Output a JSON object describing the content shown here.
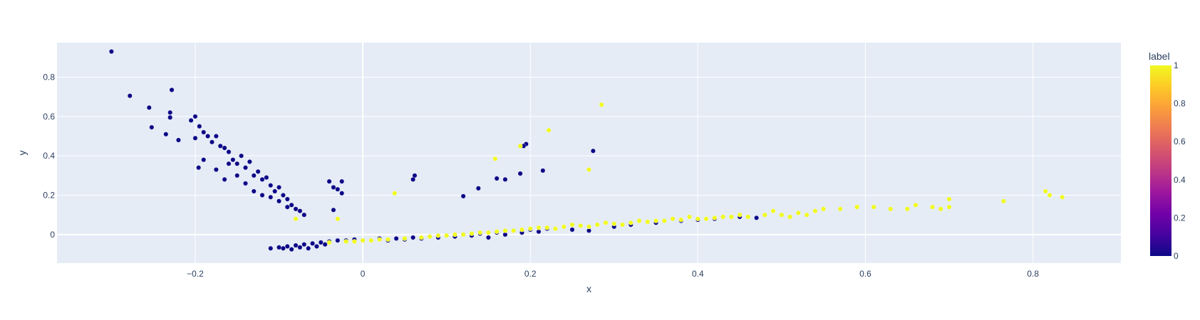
{
  "chart_data": {
    "type": "scatter",
    "title": "",
    "xlabel": "x",
    "ylabel": "y",
    "xlim": [
      -0.365,
      0.905
    ],
    "ylim": [
      -0.145,
      0.975
    ],
    "x_ticks": [
      -0.2,
      0,
      0.2,
      0.4,
      0.6,
      0.8
    ],
    "x_tick_labels": [
      "−0.2",
      "0",
      "0.2",
      "0.4",
      "0.6",
      "0.8"
    ],
    "y_ticks": [
      0,
      0.2,
      0.4,
      0.6,
      0.8
    ],
    "y_tick_labels": [
      "0",
      "0.2",
      "0.4",
      "0.6",
      "0.8"
    ],
    "grid": true,
    "plot_background": "#e5ecf6",
    "colorbar": {
      "title": "label",
      "range": [
        0,
        1
      ],
      "ticks": [
        0,
        0.2,
        0.4,
        0.6,
        0.8,
        1
      ],
      "tick_labels": [
        "0",
        "0.2",
        "0.4",
        "0.6",
        "0.8",
        "1"
      ],
      "colorscale": [
        "#0d0887",
        "#46039f",
        "#7201a8",
        "#9c179e",
        "#bd3786",
        "#d8576b",
        "#ed7953",
        "#fb9f3a",
        "#fdca26",
        "#f0f921"
      ],
      "placement": "right"
    },
    "series": [
      {
        "label_value": 0,
        "color": "#0d0887",
        "points": [
          [
            -0.3,
            0.93
          ],
          [
            -0.278,
            0.705
          ],
          [
            -0.255,
            0.645
          ],
          [
            -0.252,
            0.545
          ],
          [
            -0.235,
            0.51
          ],
          [
            -0.228,
            0.735
          ],
          [
            -0.23,
            0.62
          ],
          [
            -0.23,
            0.595
          ],
          [
            -0.22,
            0.48
          ],
          [
            -0.2,
            0.6
          ],
          [
            -0.205,
            0.58
          ],
          [
            -0.195,
            0.55
          ],
          [
            -0.2,
            0.49
          ],
          [
            -0.19,
            0.52
          ],
          [
            -0.185,
            0.5
          ],
          [
            -0.18,
            0.47
          ],
          [
            -0.175,
            0.5
          ],
          [
            -0.17,
            0.45
          ],
          [
            -0.165,
            0.44
          ],
          [
            -0.16,
            0.42
          ],
          [
            -0.155,
            0.38
          ],
          [
            -0.15,
            0.36
          ],
          [
            -0.145,
            0.4
          ],
          [
            -0.14,
            0.34
          ],
          [
            -0.135,
            0.37
          ],
          [
            -0.13,
            0.3
          ],
          [
            -0.125,
            0.32
          ],
          [
            -0.12,
            0.28
          ],
          [
            -0.115,
            0.29
          ],
          [
            -0.11,
            0.25
          ],
          [
            -0.105,
            0.22
          ],
          [
            -0.1,
            0.24
          ],
          [
            -0.095,
            0.2
          ],
          [
            -0.09,
            0.18
          ],
          [
            -0.085,
            0.15
          ],
          [
            -0.08,
            0.13
          ],
          [
            -0.075,
            0.12
          ],
          [
            -0.07,
            0.1
          ],
          [
            -0.196,
            0.34
          ],
          [
            -0.19,
            0.38
          ],
          [
            -0.175,
            0.33
          ],
          [
            -0.165,
            0.28
          ],
          [
            -0.16,
            0.36
          ],
          [
            -0.15,
            0.3
          ],
          [
            -0.14,
            0.26
          ],
          [
            -0.13,
            0.22
          ],
          [
            -0.12,
            0.2
          ],
          [
            -0.11,
            0.19
          ],
          [
            -0.1,
            0.17
          ],
          [
            -0.09,
            0.14
          ],
          [
            -0.04,
            0.27
          ],
          [
            -0.035,
            0.24
          ],
          [
            -0.03,
            0.23
          ],
          [
            -0.025,
            0.27
          ],
          [
            -0.035,
            0.125
          ],
          [
            -0.025,
            0.21
          ],
          [
            0.062,
            0.3
          ],
          [
            0.06,
            0.28
          ],
          [
            0.12,
            0.195
          ],
          [
            0.138,
            0.235
          ],
          [
            0.17,
            0.28
          ],
          [
            0.16,
            0.285
          ],
          [
            0.188,
            0.31
          ],
          [
            0.195,
            0.46
          ],
          [
            0.192,
            0.45
          ],
          [
            0.215,
            0.325
          ],
          [
            0.275,
            0.425
          ],
          [
            -0.11,
            -0.07
          ],
          [
            -0.1,
            -0.065
          ],
          [
            -0.09,
            -0.06
          ],
          [
            -0.08,
            -0.055
          ],
          [
            -0.07,
            -0.05
          ],
          [
            -0.06,
            -0.045
          ],
          [
            -0.05,
            -0.04
          ],
          [
            -0.04,
            -0.035
          ],
          [
            -0.03,
            -0.03
          ],
          [
            -0.02,
            -0.03
          ],
          [
            -0.01,
            -0.025
          ],
          [
            0.0,
            -0.03
          ],
          [
            0.02,
            -0.02
          ],
          [
            0.04,
            -0.02
          ],
          [
            0.06,
            -0.015
          ],
          [
            0.08,
            -0.01
          ],
          [
            0.1,
            -0.005
          ],
          [
            0.12,
            0.0
          ],
          [
            0.14,
            0.005
          ],
          [
            0.16,
            0.01
          ],
          [
            0.18,
            0.02
          ],
          [
            0.2,
            0.025
          ],
          [
            0.22,
            0.03
          ],
          [
            0.25,
            0.025
          ],
          [
            0.27,
            0.02
          ],
          [
            0.3,
            0.04
          ],
          [
            0.32,
            0.05
          ],
          [
            0.35,
            0.06
          ],
          [
            0.38,
            0.07
          ],
          [
            0.4,
            0.075
          ],
          [
            0.42,
            0.08
          ],
          [
            0.45,
            0.09
          ],
          [
            0.47,
            0.085
          ],
          [
            -0.095,
            -0.07
          ],
          [
            -0.085,
            -0.075
          ],
          [
            -0.075,
            -0.065
          ],
          [
            -0.065,
            -0.07
          ],
          [
            -0.055,
            -0.06
          ],
          [
            -0.045,
            -0.05
          ],
          [
            0.03,
            -0.03
          ],
          [
            0.05,
            -0.025
          ],
          [
            0.07,
            -0.02
          ],
          [
            0.09,
            -0.015
          ],
          [
            0.11,
            -0.01
          ],
          [
            0.13,
            -0.005
          ],
          [
            0.15,
            -0.015
          ],
          [
            0.17,
            0.0
          ],
          [
            0.19,
            0.01
          ],
          [
            0.21,
            0.015
          ]
        ]
      },
      {
        "label_value": 1,
        "color": "#f0f921",
        "points": [
          [
            -0.08,
            0.08
          ],
          [
            -0.03,
            0.08
          ],
          [
            0.038,
            0.21
          ],
          [
            0.158,
            0.385
          ],
          [
            0.188,
            0.45
          ],
          [
            0.222,
            0.53
          ],
          [
            0.27,
            0.33
          ],
          [
            0.285,
            0.66
          ],
          [
            -0.04,
            -0.04
          ],
          [
            -0.02,
            -0.035
          ],
          [
            0.0,
            -0.03
          ],
          [
            0.02,
            -0.025
          ],
          [
            0.05,
            -0.02
          ],
          [
            0.08,
            -0.01
          ],
          [
            0.1,
            -0.005
          ],
          [
            0.12,
            0.0
          ],
          [
            0.14,
            0.01
          ],
          [
            0.16,
            0.015
          ],
          [
            0.18,
            0.02
          ],
          [
            0.2,
            0.03
          ],
          [
            0.22,
            0.035
          ],
          [
            0.24,
            0.04
          ],
          [
            0.26,
            0.045
          ],
          [
            0.28,
            0.05
          ],
          [
            0.3,
            0.055
          ],
          [
            0.32,
            0.06
          ],
          [
            0.34,
            0.065
          ],
          [
            0.36,
            0.07
          ],
          [
            0.38,
            0.075
          ],
          [
            0.4,
            0.08
          ],
          [
            0.42,
            0.085
          ],
          [
            0.44,
            0.09
          ],
          [
            0.46,
            0.09
          ],
          [
            0.48,
            0.1
          ],
          [
            0.5,
            0.1
          ],
          [
            0.52,
            0.11
          ],
          [
            0.54,
            0.12
          ],
          [
            0.55,
            0.13
          ],
          [
            0.57,
            0.13
          ],
          [
            0.59,
            0.14
          ],
          [
            0.61,
            0.14
          ],
          [
            0.63,
            0.13
          ],
          [
            0.65,
            0.13
          ],
          [
            0.66,
            0.15
          ],
          [
            0.68,
            0.14
          ],
          [
            0.69,
            0.13
          ],
          [
            0.7,
            0.14
          ],
          [
            0.7,
            0.18
          ],
          [
            0.765,
            0.17
          ],
          [
            0.815,
            0.22
          ],
          [
            0.82,
            0.2
          ],
          [
            0.835,
            0.19
          ],
          [
            0.49,
            0.12
          ],
          [
            0.51,
            0.09
          ],
          [
            0.53,
            0.1
          ],
          [
            0.25,
            0.05
          ],
          [
            0.27,
            0.04
          ],
          [
            0.29,
            0.06
          ],
          [
            0.31,
            0.05
          ],
          [
            0.33,
            0.07
          ],
          [
            0.35,
            0.07
          ],
          [
            0.37,
            0.08
          ],
          [
            0.39,
            0.09
          ],
          [
            0.41,
            0.08
          ],
          [
            0.43,
            0.09
          ],
          [
            0.45,
            0.1
          ],
          [
            0.21,
            0.035
          ],
          [
            0.23,
            0.03
          ],
          [
            0.19,
            0.025
          ],
          [
            0.17,
            0.02
          ],
          [
            0.15,
            0.01
          ],
          [
            0.13,
            0.005
          ],
          [
            0.11,
            0.0
          ],
          [
            0.09,
            -0.005
          ],
          [
            0.07,
            -0.015
          ],
          [
            0.03,
            -0.025
          ],
          [
            0.01,
            -0.03
          ],
          [
            -0.01,
            -0.035
          ]
        ]
      }
    ]
  }
}
